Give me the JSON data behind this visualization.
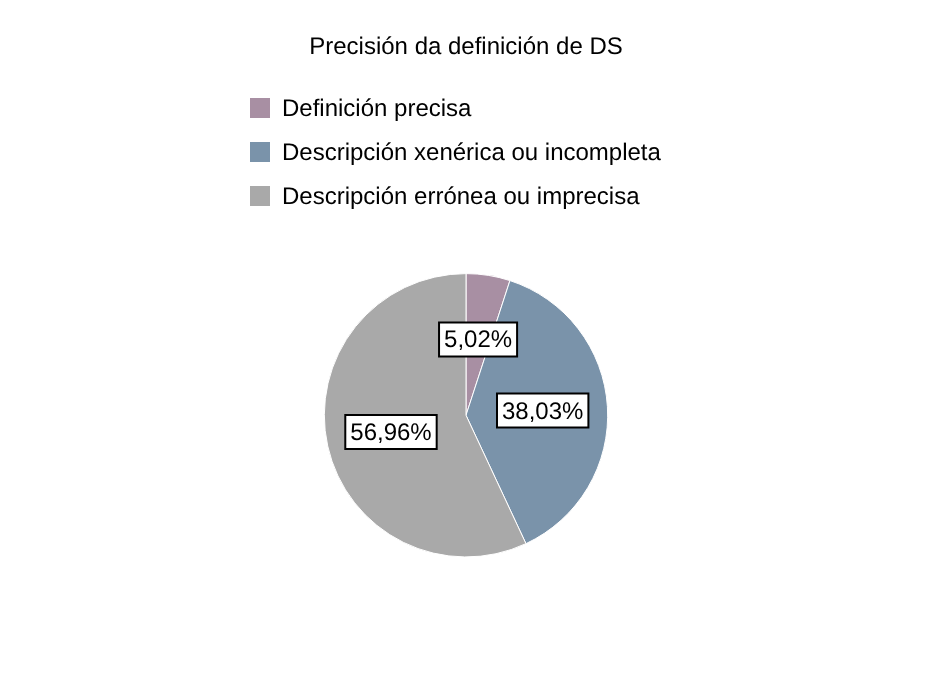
{
  "chart_data": {
    "type": "pie",
    "legend_title": "Precisión da definición de DS",
    "categories": [
      "Definición precisa",
      "Descripción xenérica ou incompleta",
      "Descripción errónea ou imprecisa"
    ],
    "values": [
      5.02,
      38.03,
      56.96
    ],
    "colors": [
      "#a88fa3",
      "#7a93aa",
      "#a9a9a9"
    ],
    "value_labels": [
      "5,02%",
      "38,03%",
      "56,96%"
    ],
    "legend": "top"
  }
}
